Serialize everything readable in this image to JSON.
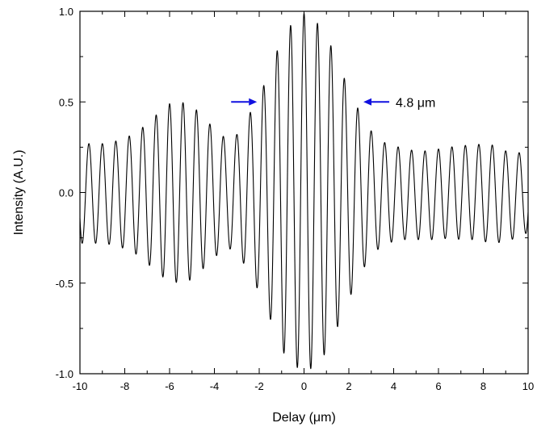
{
  "chart_data": {
    "type": "line",
    "xlabel": "Delay (μm)",
    "ylabel": "Intensity (A.U.)",
    "xlim": [
      -10,
      10
    ],
    "ylim": [
      -1.0,
      1.0
    ],
    "x_ticks": [
      -10,
      -8,
      -6,
      -4,
      -2,
      0,
      2,
      4,
      6,
      8,
      10
    ],
    "x_tick_labels": [
      "-10",
      "-8",
      "-6",
      "-4",
      "-2",
      "0",
      "2",
      "4",
      "6",
      "8",
      "10"
    ],
    "y_ticks": [
      -1.0,
      -0.5,
      0.0,
      0.5,
      1.0
    ],
    "y_tick_labels": [
      "-1.0",
      "-0.5",
      "0.0",
      "0.5",
      "1.0"
    ],
    "grid": false,
    "line_color": "#000000",
    "annotation": {
      "text": "4.8 μm",
      "arrow_color": "#1010e0",
      "y": 0.5,
      "left_arrow_tip_x": -2.1,
      "right_arrow_tip_x": 2.65
    },
    "series": [
      {
        "envelope": {
          "x": [
            -10,
            -9.5,
            -9,
            -8.5,
            -8,
            -7.5,
            -7,
            -6.5,
            -6,
            -5.5,
            -5,
            -4.5,
            -4,
            -3.5,
            -3,
            -2.5,
            -2,
            -1.5,
            -1,
            -0.5,
            0,
            0.5,
            1,
            1.5,
            2,
            2.5,
            3,
            3.5,
            4,
            4.5,
            5,
            5.5,
            6,
            6.5,
            7,
            7.5,
            8,
            8.5,
            9,
            9.5,
            10
          ],
          "upper": [
            0.27,
            0.27,
            0.27,
            0.28,
            0.3,
            0.33,
            0.38,
            0.44,
            0.49,
            0.5,
            0.48,
            0.42,
            0.35,
            0.3,
            0.32,
            0.42,
            0.53,
            0.68,
            0.85,
            0.94,
            0.99,
            0.95,
            0.87,
            0.72,
            0.57,
            0.44,
            0.34,
            0.28,
            0.26,
            0.24,
            0.23,
            0.23,
            0.24,
            0.25,
            0.26,
            0.26,
            0.27,
            0.26,
            0.23,
            0.22,
            0.22
          ],
          "lower": [
            -0.28,
            -0.28,
            -0.28,
            -0.29,
            -0.31,
            -0.34,
            -0.39,
            -0.45,
            -0.49,
            -0.5,
            -0.48,
            -0.42,
            -0.36,
            -0.3,
            -0.33,
            -0.43,
            -0.55,
            -0.7,
            -0.87,
            -0.95,
            -0.99,
            -0.96,
            -0.88,
            -0.74,
            -0.59,
            -0.45,
            -0.35,
            -0.29,
            -0.27,
            -0.26,
            -0.26,
            -0.26,
            -0.26,
            -0.25,
            -0.26,
            -0.26,
            -0.27,
            -0.28,
            -0.27,
            -0.25,
            -0.22
          ]
        },
        "fringe_period": 0.6
      }
    ]
  }
}
